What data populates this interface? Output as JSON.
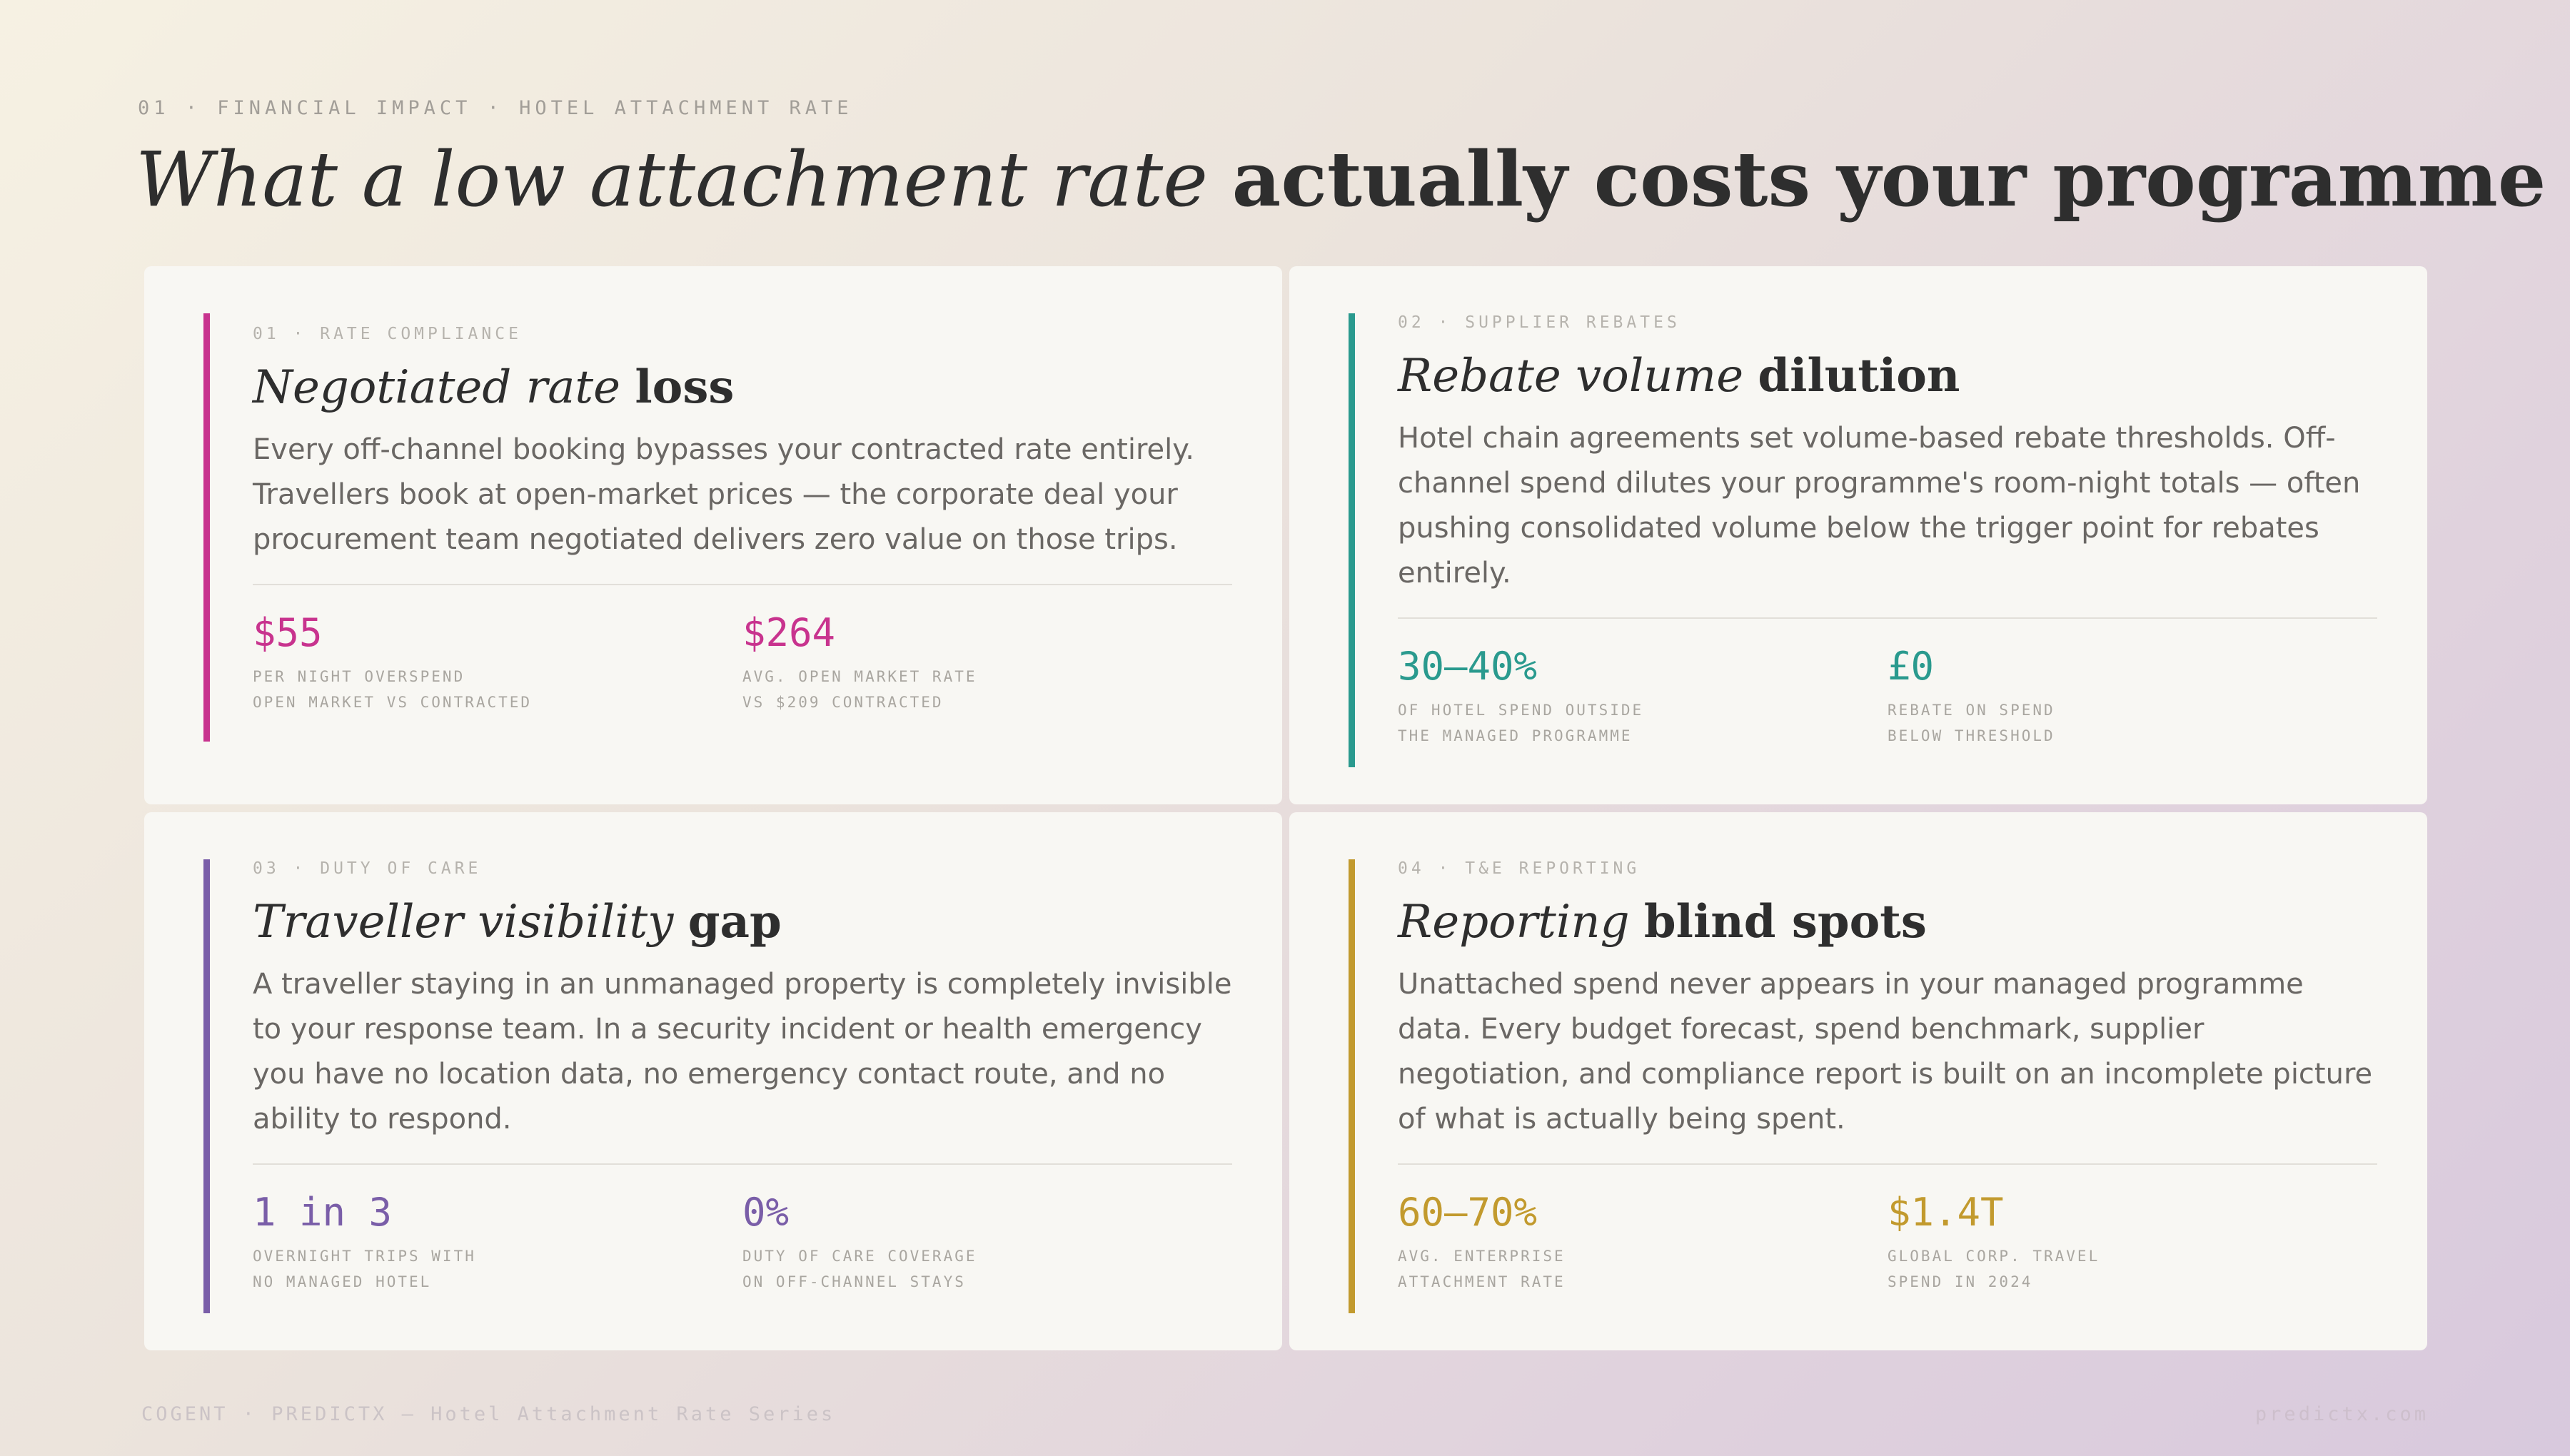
{
  "header": {
    "eyebrow": "01 · FINANCIAL IMPACT · HOTEL ATTACHMENT RATE",
    "title_light": "What a low attachment rate ",
    "title_bold": "actually costs your programme"
  },
  "cards": [
    {
      "kicker": "01 · RATE COMPLIANCE",
      "title_light": "Negotiated rate ",
      "title_bold": "loss",
      "body": "Every off-channel booking bypasses your contracted rate entirely. Travellers book at open-market prices — the corporate deal your procurement team negotiated delivers zero value on those trips.",
      "accent": "#c8338e",
      "stats": [
        {
          "value": "$55",
          "label": "PER NIGHT OVERSPEND\nOPEN MARKET VS CONTRACTED"
        },
        {
          "value": "$264",
          "label": "AVG. OPEN MARKET RATE\nVS $209 CONTRACTED"
        }
      ]
    },
    {
      "kicker": "02 · SUPPLIER REBATES",
      "title_light": "Rebate volume ",
      "title_bold": "dilution",
      "body": "Hotel chain agreements set volume-based rebate thresholds. Off-channel spend dilutes your programme's room-night totals — often pushing consolidated volume below the trigger point for rebates entirely.",
      "accent": "#2a9a8e",
      "stats": [
        {
          "value": "30–40%",
          "label": "OF HOTEL SPEND OUTSIDE\nTHE MANAGED PROGRAMME"
        },
        {
          "value": "£0",
          "label": "REBATE ON SPEND\nBELOW THRESHOLD"
        }
      ]
    },
    {
      "kicker": "03 · DUTY OF CARE",
      "title_light": "Traveller visibility ",
      "title_bold": "gap",
      "body": "A traveller staying in an unmanaged property is completely invisible to your response team. In a security incident or health emergency you have no location data, no emergency contact route, and no ability to respond.",
      "accent": "#7a5ea8",
      "stats": [
        {
          "value": "1 in 3",
          "label": "OVERNIGHT TRIPS WITH\nNO MANAGED HOTEL"
        },
        {
          "value": "0%",
          "label": "DUTY OF CARE COVERAGE\nON OFF-CHANNEL STAYS"
        }
      ]
    },
    {
      "kicker": "04 · T&E REPORTING",
      "title_light": "Reporting ",
      "title_bold": "blind spots",
      "body": "Unattached spend never appears in your managed programme data. Every budget forecast, spend benchmark, supplier negotiation, and compliance report is built on an incomplete picture of what is actually being spent.",
      "accent": "#c29a2e",
      "stats": [
        {
          "value": "60–70%",
          "label": "AVG. ENTERPRISE\nATTACHMENT RATE"
        },
        {
          "value": "$1.4T",
          "label": "GLOBAL CORP. TRAVEL\nSPEND IN 2024"
        }
      ]
    }
  ],
  "footer": {
    "left": "COGENT · PREDICTX — Hotel Attachment Rate Series",
    "right": "predictx.com"
  }
}
